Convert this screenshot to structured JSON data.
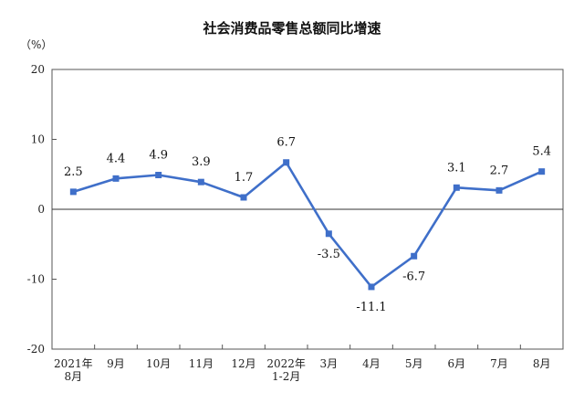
{
  "chart_data": {
    "type": "line",
    "title": "社会消费品零售总额同比增速",
    "unit": "（%）",
    "categories": [
      [
        "2021年",
        "8月"
      ],
      [
        "9月"
      ],
      [
        "10月"
      ],
      [
        "11月"
      ],
      [
        "12月"
      ],
      [
        "2022年",
        "1-2月"
      ],
      [
        "3月"
      ],
      [
        "4月"
      ],
      [
        "5月"
      ],
      [
        "6月"
      ],
      [
        "7月"
      ],
      [
        "8月"
      ]
    ],
    "values": [
      2.5,
      4.4,
      4.9,
      3.9,
      1.7,
      6.7,
      -3.5,
      -11.1,
      -6.7,
      3.1,
      2.7,
      5.4
    ],
    "data_labels": [
      "2.5",
      "4.4",
      "4.9",
      "3.9",
      "1.7",
      "6.7",
      "-3.5",
      "-11.1",
      "-6.7",
      "3.1",
      "2.7",
      "5.4"
    ],
    "label_position": [
      "above",
      "above",
      "above",
      "above",
      "above",
      "above",
      "below",
      "below",
      "below",
      "above",
      "above",
      "above"
    ],
    "yticks": [
      "20",
      "10",
      "0",
      "-10",
      "-20"
    ],
    "ylim": [
      -20,
      20
    ],
    "grid": false,
    "line_color": "#3f6fc9"
  }
}
